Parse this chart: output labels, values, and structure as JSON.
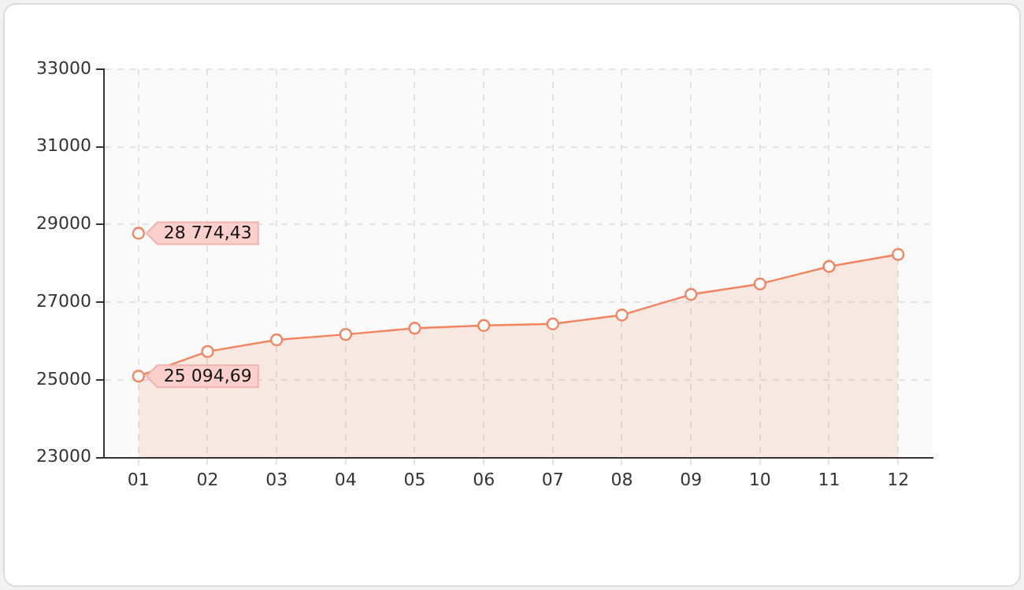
{
  "chart_data": {
    "type": "area",
    "categories": [
      "01",
      "02",
      "03",
      "04",
      "05",
      "06",
      "07",
      "08",
      "09",
      "10",
      "11",
      "12"
    ],
    "series": [
      {
        "color": "#f4845f",
        "values": [
          25094.69,
          25730,
          26030,
          26170,
          26330,
          26400,
          26440,
          26670,
          27200,
          27470,
          27920,
          28230
        ],
        "value_labels": [
          "25 094,69",
          null,
          null,
          null,
          null,
          null,
          null,
          null,
          null,
          null,
          null,
          null
        ]
      },
      {
        "type": "scatter",
        "color": "#f4845f",
        "x": [
          "01"
        ],
        "values": [
          28774.43
        ],
        "value_labels": [
          "28 774,43"
        ]
      }
    ],
    "ylim": [
      23000,
      33000
    ],
    "yticks": [
      23000,
      25000,
      27000,
      29000,
      31000,
      33000
    ],
    "grid": true,
    "marker": "circle",
    "legend": false
  }
}
